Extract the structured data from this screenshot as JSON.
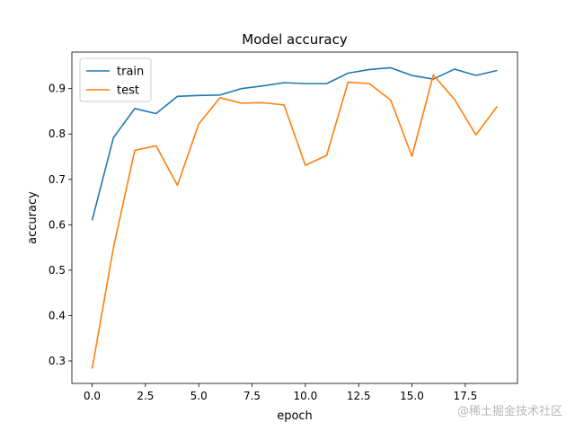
{
  "chart_data": {
    "type": "line",
    "title": "Model accuracy",
    "xlabel": "epoch",
    "ylabel": "accuracy",
    "xlim": [
      -0.95,
      19.95
    ],
    "ylim": [
      0.2505,
      0.9805
    ],
    "xticks": [
      0.0,
      2.5,
      5.0,
      7.5,
      10.0,
      12.5,
      15.0,
      17.5
    ],
    "xtick_labels": [
      "0.0",
      "2.5",
      "5.0",
      "7.5",
      "10.0",
      "12.5",
      "15.0",
      "17.5"
    ],
    "yticks": [
      0.3,
      0.4,
      0.5,
      0.6,
      0.7,
      0.8,
      0.9
    ],
    "ytick_labels": [
      "0.3",
      "0.4",
      "0.5",
      "0.6",
      "0.7",
      "0.8",
      "0.9"
    ],
    "grid": false,
    "legend_position": "top-left",
    "x": [
      0,
      1,
      2,
      3,
      4,
      5,
      6,
      7,
      8,
      9,
      10,
      11,
      12,
      13,
      14,
      15,
      16,
      17,
      18,
      19
    ],
    "series": [
      {
        "name": "train",
        "color": "#1f77b4",
        "values": [
          0.61,
          0.792,
          0.856,
          0.845,
          0.883,
          0.885,
          0.886,
          0.9,
          0.906,
          0.913,
          0.911,
          0.911,
          0.934,
          0.942,
          0.946,
          0.929,
          0.921,
          0.943,
          0.929,
          0.94
        ]
      },
      {
        "name": "test",
        "color": "#ff7f0e",
        "values": [
          0.283,
          0.55,
          0.764,
          0.774,
          0.687,
          0.822,
          0.88,
          0.868,
          0.869,
          0.864,
          0.731,
          0.753,
          0.914,
          0.911,
          0.875,
          0.751,
          0.93,
          0.876,
          0.798,
          0.861
        ]
      }
    ]
  },
  "watermark": "@稀土掘金技术社区"
}
